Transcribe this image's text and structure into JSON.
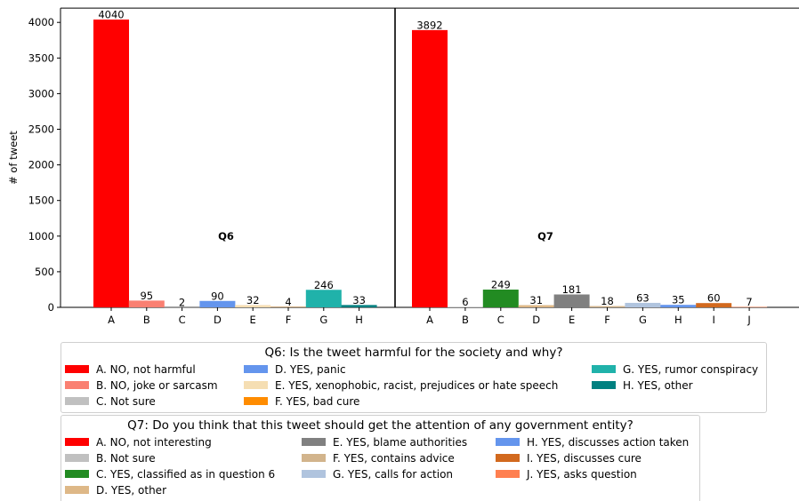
{
  "chart_data": [
    {
      "type": "bar",
      "ylabel": "# of tweet",
      "ylim": [
        0,
        4200
      ],
      "yticks": [
        0,
        500,
        1000,
        1500,
        2000,
        2500,
        3000,
        3500,
        4000
      ],
      "panel_label": "Q6",
      "categories": [
        "A",
        "B",
        "C",
        "D",
        "E",
        "F",
        "G",
        "H"
      ],
      "values": [
        4040,
        95,
        2,
        90,
        32,
        4,
        246,
        33
      ],
      "colors": [
        "#ff0000",
        "#fa8072",
        "#c0c0c0",
        "#6495ed",
        "#f5deb3",
        "#ff8c00",
        "#20b2aa",
        "#008080"
      ],
      "legend": {
        "title": "Q6: Is the tweet harmful for the society and why?",
        "entries": [
          "A. NO, not harmful",
          "B. NO, joke or sarcasm",
          "C. Not sure",
          "D. YES, panic",
          "E. YES, xenophobic, racist, prejudices or hate speech",
          "F. YES, bad cure",
          "G. YES, rumor conspiracy",
          "H. YES, other"
        ]
      }
    },
    {
      "type": "bar",
      "ylim": [
        0,
        4200
      ],
      "panel_label": "Q7",
      "categories": [
        "A",
        "B",
        "C",
        "D",
        "E",
        "F",
        "G",
        "H",
        "I",
        "J"
      ],
      "values": [
        3892,
        6,
        249,
        31,
        181,
        18,
        63,
        35,
        60,
        7
      ],
      "colors": [
        "#ff0000",
        "#c0c0c0",
        "#228b22",
        "#deb887",
        "#808080",
        "#d2b48c",
        "#b0c4de",
        "#6495ed",
        "#d2691e",
        "#ff7f50"
      ],
      "legend": {
        "title": "Q7: Do you think that this tweet should get the attention of any government entity?",
        "entries": [
          "A. NO, not interesting",
          "B. Not sure",
          "C. YES, classified as in question 6",
          "D. YES, other",
          "E. YES, blame authorities",
          "F. YES, contains advice",
          "G. YES, calls for action",
          "H. YES, discusses action taken",
          "I. YES, discusses cure",
          "J. YES, asks question"
        ]
      }
    }
  ]
}
